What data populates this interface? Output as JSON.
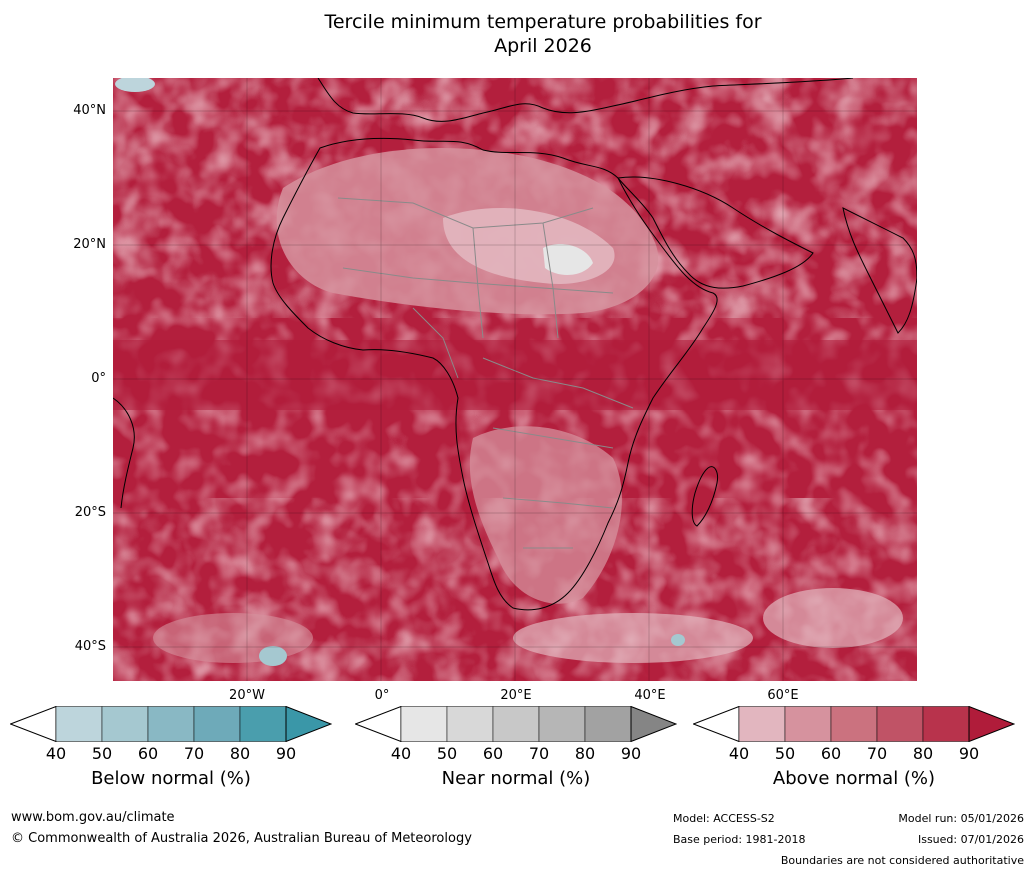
{
  "title_line1": "Tercile minimum temperature probabilities for",
  "title_line2": "April 2026",
  "lat_labels": [
    "40°N",
    "20°N",
    "0°",
    "20°S",
    "40°S"
  ],
  "lon_labels": [
    "20°W",
    "0°",
    "20°E",
    "40°E",
    "60°E"
  ],
  "colorbars": [
    {
      "name": "Below normal (%)",
      "ticks": [
        "40",
        "50",
        "60",
        "70",
        "80",
        "90"
      ],
      "colors": [
        "#ffffff",
        "#bdd5dc",
        "#a5c8d0",
        "#89b8c4",
        "#6eaab9",
        "#4a9ead",
        "#3a97a8"
      ]
    },
    {
      "name": "Near normal (%)",
      "ticks": [
        "40",
        "50",
        "60",
        "70",
        "80",
        "90"
      ],
      "colors": [
        "#ffffff",
        "#e6e6e6",
        "#d8d8d8",
        "#c8c8c8",
        "#b6b6b6",
        "#a2a2a2",
        "#858585"
      ]
    },
    {
      "name": "Above normal (%)",
      "ticks": [
        "40",
        "50",
        "60",
        "70",
        "80",
        "90"
      ],
      "colors": [
        "#ffffff",
        "#e2b6bf",
        "#d6929e",
        "#cb727f",
        "#c05366",
        "#b8334c",
        "#b01c3a"
      ]
    }
  ],
  "footer": {
    "url": "www.bom.gov.au/climate",
    "copyright": "© Commonwealth of Australia 2026, Australian Bureau of Meteorology",
    "model": "Model: ACCESS-S2",
    "base_period": "Base period: 1981-2018",
    "model_run": "Model run: 05/01/2026",
    "issued": "Issued: 07/01/2026",
    "disclaimer": "Boundaries are not considered authoritative"
  }
}
